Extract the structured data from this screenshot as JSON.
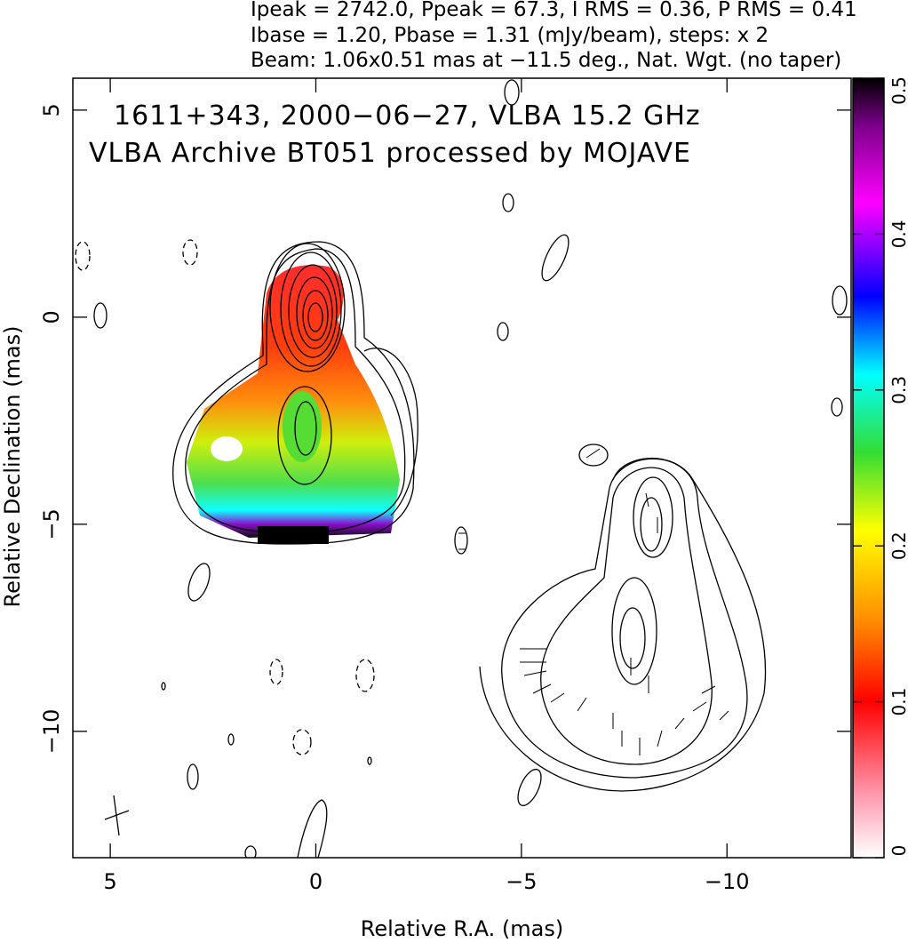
{
  "chart_data": {
    "type": "contour",
    "header": [
      "Ipeak = 2742.0, Ppeak = 67.3, I RMS = 0.36, P RMS = 0.41",
      "Ibase = 1.20, Pbase = 1.31 (mJy/beam), steps: x 2",
      "Beam: 1.06x0.51 mas at −11.5 deg., Nat. Wgt. (no taper)"
    ],
    "annotations": [
      "1611+343, 2000−06−27, VLBA 15.2 GHz",
      "VLBA Archive BT051 processed by MOJAVE"
    ],
    "x_label": "Relative R.A. (mas)",
    "y_label": "Relative Declination (mas)",
    "xlim": [
      5.91,
      -13.02
    ],
    "xticks": [
      5,
      0,
      {
        "value": -5,
        "label": "−5"
      },
      {
        "value": -10,
        "label": "−10"
      }
    ],
    "ylim": [
      -13.05,
      5.77
    ],
    "yticks": [
      5,
      0,
      {
        "value": -5,
        "label": "−5"
      },
      {
        "value": -10,
        "label": "−10"
      }
    ],
    "colorbar": {
      "lim": [
        0,
        0.5
      ],
      "ticks": [
        0,
        0.1,
        0.2,
        0.3,
        0.4,
        0.5
      ]
    }
  }
}
